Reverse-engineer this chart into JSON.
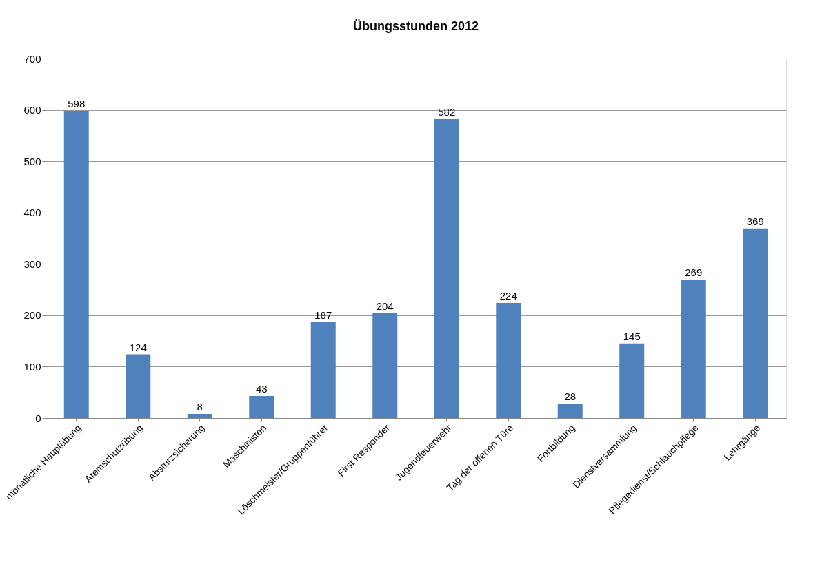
{
  "chart_data": {
    "type": "bar",
    "title": "Übungsstunden 2012",
    "categories": [
      "monatliche Hauptübung",
      "Atemschutzübung",
      "Absturzsicherung",
      "Maschinisten",
      "Löschmeister/Gruppenführer",
      "First Responder",
      "Jugendfeuerwehr",
      "Tag der offenen Türe",
      "Fortbildung",
      "Dienstversammlung",
      "Pflegedienst/Schlauchpflege",
      "Lehrgänge"
    ],
    "values": [
      598,
      124,
      8,
      43,
      187,
      204,
      582,
      224,
      28,
      145,
      269,
      369
    ],
    "color": "#4f81bd",
    "ylim": [
      0,
      700
    ],
    "yticks": [
      0,
      100,
      200,
      300,
      400,
      500,
      600,
      700
    ],
    "grid": "y",
    "data_labels": true
  }
}
